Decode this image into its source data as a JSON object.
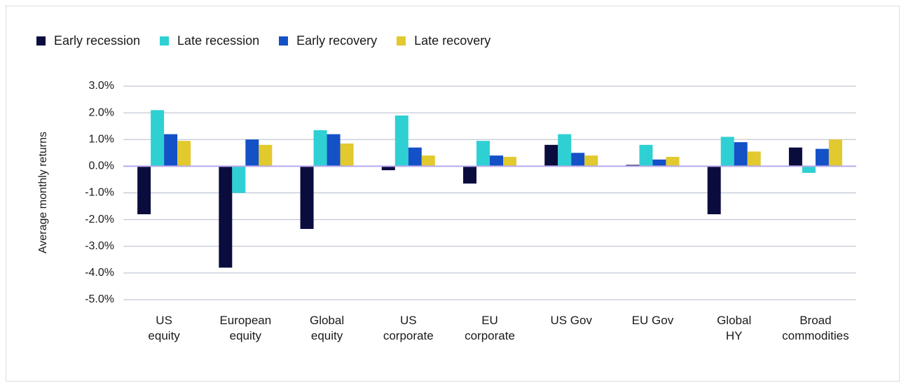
{
  "chart_data": {
    "type": "bar",
    "y_label": "Average monthly returns",
    "categories": [
      "US\nequity",
      "European\nequity",
      "Global\nequity",
      "US\ncorporate",
      "EU\ncorporate",
      "US Gov",
      "EU Gov",
      "Global\nHY",
      "Broad\ncommodities"
    ],
    "series": [
      {
        "name": "Early recession",
        "color": "#0b0c3e",
        "values": [
          -1.8,
          -3.8,
          -2.35,
          -0.15,
          -0.65,
          0.8,
          0.05,
          -1.8,
          0.7
        ]
      },
      {
        "name": "Late recession",
        "color": "#2fd0d3",
        "values": [
          2.1,
          -1.0,
          1.35,
          1.9,
          0.95,
          1.2,
          0.8,
          1.1,
          -0.25
        ]
      },
      {
        "name": "Early recovery",
        "color": "#1450c6",
        "values": [
          1.2,
          1.0,
          1.2,
          0.7,
          0.4,
          0.5,
          0.25,
          0.9,
          0.65
        ]
      },
      {
        "name": "Late recovery",
        "color": "#e1c92e",
        "values": [
          0.95,
          0.8,
          0.85,
          0.4,
          0.35,
          0.4,
          0.35,
          0.55,
          1.0
        ]
      }
    ],
    "ylim": [
      -5,
      3
    ],
    "yticks": [
      {
        "value": -5,
        "label": "-5.0%"
      },
      {
        "value": -4,
        "label": "-4.0%"
      },
      {
        "value": -3,
        "label": "-3.0%"
      },
      {
        "value": -2,
        "label": "-2.0%"
      },
      {
        "value": -1,
        "label": "-1.0%"
      },
      {
        "value": 0,
        "label": "0.0%"
      },
      {
        "value": 1,
        "label": "1.0%"
      },
      {
        "value": 2,
        "label": "2.0%"
      },
      {
        "value": 3,
        "label": "3.0%"
      }
    ],
    "grid": true
  }
}
